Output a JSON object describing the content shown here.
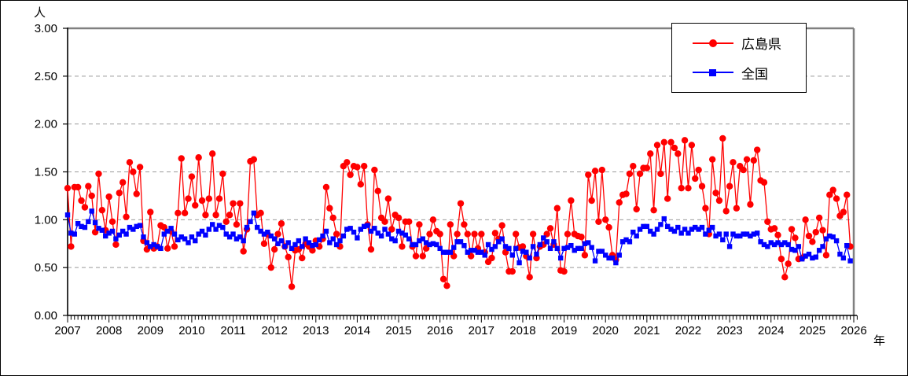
{
  "chart_data": {
    "type": "line",
    "title": "",
    "xlabel": "年",
    "ylabel": "人",
    "ylim": [
      0.0,
      3.0
    ],
    "y_tick_labels": [
      "0.00",
      "0.50",
      "1.00",
      "1.50",
      "2.00",
      "2.50",
      "3.00"
    ],
    "x_years": [
      2007,
      2008,
      2009,
      2010,
      2011,
      2012,
      2013,
      2014,
      2015,
      2016,
      2017,
      2018,
      2019,
      2020,
      2021,
      2022,
      2023,
      2024,
      2025,
      2026
    ],
    "frequency": "monthly",
    "start_month": "2007-01",
    "end_month": "2025-12",
    "grid": "dashed horizontal at 0.50 intervals",
    "legend_position": "top-right inset box",
    "series": [
      {
        "name": "広島県",
        "color": "#ff0000",
        "marker": "circle",
        "values": [
          1.33,
          0.72,
          1.34,
          1.34,
          1.2,
          1.13,
          1.35,
          1.25,
          0.87,
          1.48,
          1.1,
          0.89,
          1.24,
          0.98,
          0.74,
          1.28,
          1.39,
          1.03,
          1.6,
          1.5,
          1.27,
          1.55,
          0.78,
          0.69,
          1.08,
          0.7,
          0.72,
          0.94,
          0.92,
          0.7,
          0.88,
          0.72,
          1.07,
          1.64,
          1.07,
          1.22,
          1.45,
          1.15,
          1.65,
          1.2,
          1.05,
          1.22,
          1.69,
          1.05,
          1.22,
          1.48,
          0.98,
          1.05,
          1.17,
          0.95,
          1.17,
          0.67,
          0.9,
          1.61,
          1.63,
          1.05,
          1.07,
          0.75,
          0.85,
          0.5,
          0.69,
          0.85,
          0.96,
          0.72,
          0.61,
          0.3,
          0.68,
          0.69,
          0.6,
          0.75,
          0.72,
          0.68,
          0.78,
          0.72,
          0.8,
          1.34,
          1.12,
          1.02,
          0.85,
          0.72,
          1.56,
          1.6,
          1.47,
          1.56,
          1.55,
          1.37,
          1.56,
          0.95,
          0.69,
          1.52,
          1.3,
          1.02,
          0.98,
          1.22,
          0.9,
          1.05,
          1.02,
          0.72,
          0.98,
          0.98,
          0.72,
          0.62,
          0.95,
          0.62,
          0.7,
          0.85,
          1.0,
          0.88,
          0.85,
          0.38,
          0.31,
          0.95,
          0.62,
          0.85,
          1.17,
          0.95,
          0.85,
          0.62,
          0.85,
          0.7,
          0.85,
          0.66,
          0.56,
          0.6,
          0.86,
          0.8,
          0.94,
          0.66,
          0.46,
          0.46,
          0.85,
          0.71,
          0.72,
          0.62,
          0.4,
          0.85,
          0.6,
          0.72,
          0.74,
          0.85,
          0.91,
          0.74,
          1.12,
          0.47,
          0.46,
          0.85,
          1.2,
          0.85,
          0.83,
          0.82,
          0.63,
          1.47,
          1.2,
          1.51,
          0.98,
          1.52,
          1.0,
          0.92,
          0.63,
          0.58,
          1.18,
          1.26,
          1.27,
          1.48,
          1.56,
          1.11,
          1.48,
          1.54,
          1.54,
          1.69,
          1.1,
          1.78,
          1.48,
          1.81,
          1.22,
          1.81,
          1.75,
          1.69,
          1.33,
          1.83,
          1.33,
          1.78,
          1.43,
          1.52,
          1.35,
          1.12,
          0.85,
          1.63,
          1.28,
          1.2,
          1.85,
          1.09,
          1.35,
          1.6,
          1.12,
          1.56,
          1.52,
          1.63,
          1.16,
          1.62,
          1.73,
          1.41,
          1.39,
          0.98,
          0.9,
          0.91,
          0.84,
          0.59,
          0.4,
          0.54,
          0.9,
          0.81,
          0.59,
          0.6,
          1.0,
          0.83,
          0.77,
          0.87,
          1.02,
          0.89,
          0.63,
          1.26,
          1.31,
          1.22,
          1.04,
          1.08,
          1.26,
          0.72
        ]
      },
      {
        "name": "全国",
        "color": "#0000ff",
        "marker": "square",
        "values": [
          1.05,
          0.86,
          0.85,
          0.96,
          0.93,
          0.92,
          0.98,
          1.09,
          0.97,
          0.91,
          0.89,
          0.83,
          0.86,
          0.88,
          0.8,
          0.84,
          0.88,
          0.85,
          0.92,
          0.9,
          0.93,
          0.94,
          0.82,
          0.76,
          0.72,
          0.74,
          0.72,
          0.7,
          0.85,
          0.88,
          0.91,
          0.85,
          0.79,
          0.82,
          0.8,
          0.76,
          0.82,
          0.78,
          0.85,
          0.88,
          0.84,
          0.9,
          0.95,
          0.9,
          0.94,
          0.92,
          0.85,
          0.82,
          0.85,
          0.8,
          0.82,
          0.78,
          0.92,
          0.98,
          1.07,
          0.92,
          0.88,
          0.85,
          0.87,
          0.83,
          0.8,
          0.75,
          0.78,
          0.72,
          0.76,
          0.7,
          0.74,
          0.78,
          0.72,
          0.8,
          0.76,
          0.73,
          0.74,
          0.79,
          0.83,
          0.88,
          0.76,
          0.8,
          0.74,
          0.78,
          0.83,
          0.9,
          0.91,
          0.87,
          0.81,
          0.9,
          0.93,
          0.94,
          0.88,
          0.91,
          0.86,
          0.83,
          0.9,
          0.85,
          0.8,
          0.78,
          0.88,
          0.86,
          0.84,
          0.8,
          0.74,
          0.74,
          0.78,
          0.8,
          0.76,
          0.74,
          0.75,
          0.74,
          0.7,
          0.66,
          0.66,
          0.66,
          0.71,
          0.77,
          0.77,
          0.73,
          0.66,
          0.68,
          0.68,
          0.66,
          0.66,
          0.63,
          0.74,
          0.69,
          0.72,
          0.77,
          0.8,
          0.72,
          0.7,
          0.63,
          0.7,
          0.55,
          0.67,
          0.66,
          0.6,
          0.72,
          0.64,
          0.74,
          0.81,
          0.77,
          0.7,
          0.77,
          0.7,
          0.6,
          0.7,
          0.71,
          0.73,
          0.68,
          0.7,
          0.7,
          0.75,
          0.76,
          0.71,
          0.57,
          0.67,
          0.67,
          0.63,
          0.6,
          0.6,
          0.55,
          0.63,
          0.77,
          0.79,
          0.77,
          0.87,
          0.83,
          0.9,
          0.93,
          0.93,
          0.88,
          0.85,
          0.9,
          0.95,
          1.01,
          0.93,
          0.9,
          0.88,
          0.92,
          0.86,
          0.9,
          0.86,
          0.9,
          0.92,
          0.9,
          0.92,
          0.85,
          0.89,
          0.92,
          0.83,
          0.85,
          0.79,
          0.85,
          0.72,
          0.85,
          0.83,
          0.83,
          0.85,
          0.85,
          0.83,
          0.85,
          0.86,
          0.77,
          0.74,
          0.72,
          0.76,
          0.74,
          0.76,
          0.74,
          0.76,
          0.74,
          0.69,
          0.68,
          0.72,
          0.59,
          0.62,
          0.64,
          0.6,
          0.61,
          0.68,
          0.72,
          0.8,
          0.83,
          0.82,
          0.78,
          0.64,
          0.6,
          0.73,
          0.57
        ]
      }
    ]
  }
}
